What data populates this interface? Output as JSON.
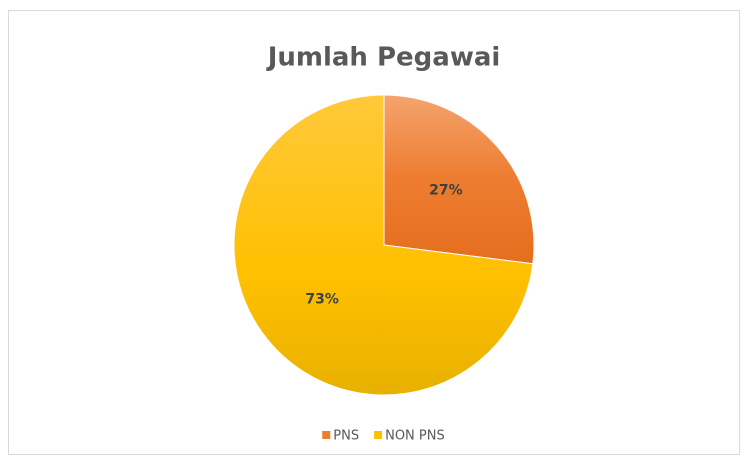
{
  "chart_data": {
    "type": "pie",
    "title": "Jumlah Pegawai",
    "categories": [
      "PNS",
      "NON PNS"
    ],
    "values": [
      27,
      73
    ],
    "value_labels": [
      "27%",
      "73%"
    ],
    "colors": [
      "#ED7D31",
      "#FFC000"
    ],
    "legend": "bottom"
  }
}
